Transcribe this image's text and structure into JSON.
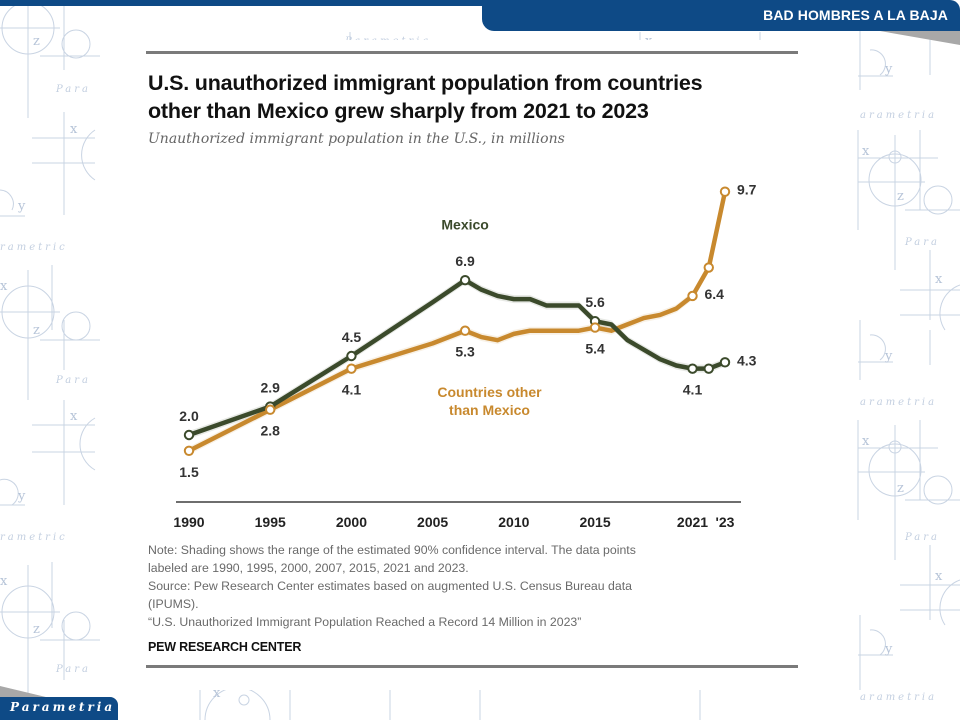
{
  "header": {
    "banner_title": "BAD HOMBRES A LA BAJA"
  },
  "footer": {
    "logo_text": "Parametria"
  },
  "watermark": {
    "words": [
      "Para",
      "rametria",
      "arametria",
      "Parametria"
    ],
    "symbols": [
      "x",
      "y",
      "z"
    ]
  },
  "colors": {
    "brand_blue": "#0e4a86",
    "mexico": "#3b4a2b",
    "other": "#c8892e",
    "text": "#111111",
    "note": "#6a6a6a"
  },
  "chart_data": {
    "type": "line",
    "title": "U.S. unauthorized immigrant population from countries other than Mexico grew sharply from 2021 to 2023",
    "title_lines": [
      "U.S. unauthorized immigrant population from countries",
      "other than Mexico grew sharply from 2021 to 2023"
    ],
    "subtitle": "Unauthorized immigrant population in the U.S., in millions",
    "xlabel": "",
    "ylabel": "",
    "xlim": [
      1990,
      2023
    ],
    "ylim": [
      1.0,
      10.0
    ],
    "grid": false,
    "x_ticks": [
      {
        "value": 1990,
        "label": "1990"
      },
      {
        "value": 1995,
        "label": "1995"
      },
      {
        "value": 2000,
        "label": "2000"
      },
      {
        "value": 2005,
        "label": "2005"
      },
      {
        "value": 2010,
        "label": "2010"
      },
      {
        "value": 2015,
        "label": "2015"
      },
      {
        "value": 2021,
        "label": "2021"
      },
      {
        "value": 2023,
        "label": "'23"
      }
    ],
    "x": [
      1990,
      1995,
      2000,
      2005,
      2007,
      2008,
      2009,
      2010,
      2011,
      2012,
      2013,
      2014,
      2015,
      2016,
      2017,
      2018,
      2019,
      2020,
      2021,
      2022,
      2023
    ],
    "series": [
      {
        "name": "Mexico",
        "legend_label": [
          "Mexico"
        ],
        "legend_anchor": {
          "x": 2007,
          "y": 8.5
        },
        "values": [
          2.0,
          2.9,
          4.5,
          6.2,
          6.9,
          6.6,
          6.4,
          6.3,
          6.3,
          6.1,
          6.1,
          6.1,
          5.6,
          5.5,
          5.0,
          4.7,
          4.4,
          4.2,
          4.1,
          4.1,
          4.3
        ],
        "markers": [
          1990,
          1995,
          2000,
          2007,
          2015,
          2021,
          2022,
          2023
        ],
        "labels": [
          {
            "x": 1990,
            "text": "2.0",
            "pos": "above"
          },
          {
            "x": 1995,
            "text": "2.9",
            "pos": "above"
          },
          {
            "x": 2000,
            "text": "4.5",
            "pos": "above"
          },
          {
            "x": 2007,
            "text": "6.9",
            "pos": "above"
          },
          {
            "x": 2015,
            "text": "5.6",
            "pos": "above"
          },
          {
            "x": 2021,
            "text": "4.1",
            "pos": "below"
          },
          {
            "x": 2023,
            "text": "4.3",
            "pos": "right"
          }
        ]
      },
      {
        "name": "Countries other than Mexico",
        "legend_label": [
          "Countries other",
          "than Mexico"
        ],
        "legend_anchor": {
          "x": 2008.5,
          "y": 3.2
        },
        "values": [
          1.5,
          2.8,
          4.1,
          4.9,
          5.3,
          5.1,
          5.0,
          5.2,
          5.3,
          5.3,
          5.3,
          5.3,
          5.4,
          5.3,
          5.5,
          5.7,
          5.8,
          6.0,
          6.4,
          7.3,
          9.7
        ],
        "markers": [
          1990,
          1995,
          2000,
          2007,
          2015,
          2021,
          2022,
          2023
        ],
        "labels": [
          {
            "x": 1990,
            "text": "1.5",
            "pos": "below"
          },
          {
            "x": 1995,
            "text": "2.8",
            "pos": "below"
          },
          {
            "x": 2000,
            "text": "4.1",
            "pos": "below"
          },
          {
            "x": 2007,
            "text": "5.3",
            "pos": "below"
          },
          {
            "x": 2015,
            "text": "5.4",
            "pos": "below"
          },
          {
            "x": 2021,
            "text": "6.4",
            "pos": "right"
          },
          {
            "x": 2023,
            "text": "9.7",
            "pos": "right"
          }
        ]
      }
    ],
    "notes": [
      "Note: Shading shows the range of the estimated 90% confidence interval. The data points",
      "labeled are 1990, 1995, 2000, 2007, 2015, 2021 and 2023.",
      "Source: Pew Research Center estimates based on augmented U.S. Census Bureau data",
      "(IPUMS).",
      "“U.S. Unauthorized Immigrant Population Reached a Record 14 Million in 2023”"
    ],
    "source_brand": "PEW RESEARCH CENTER"
  }
}
